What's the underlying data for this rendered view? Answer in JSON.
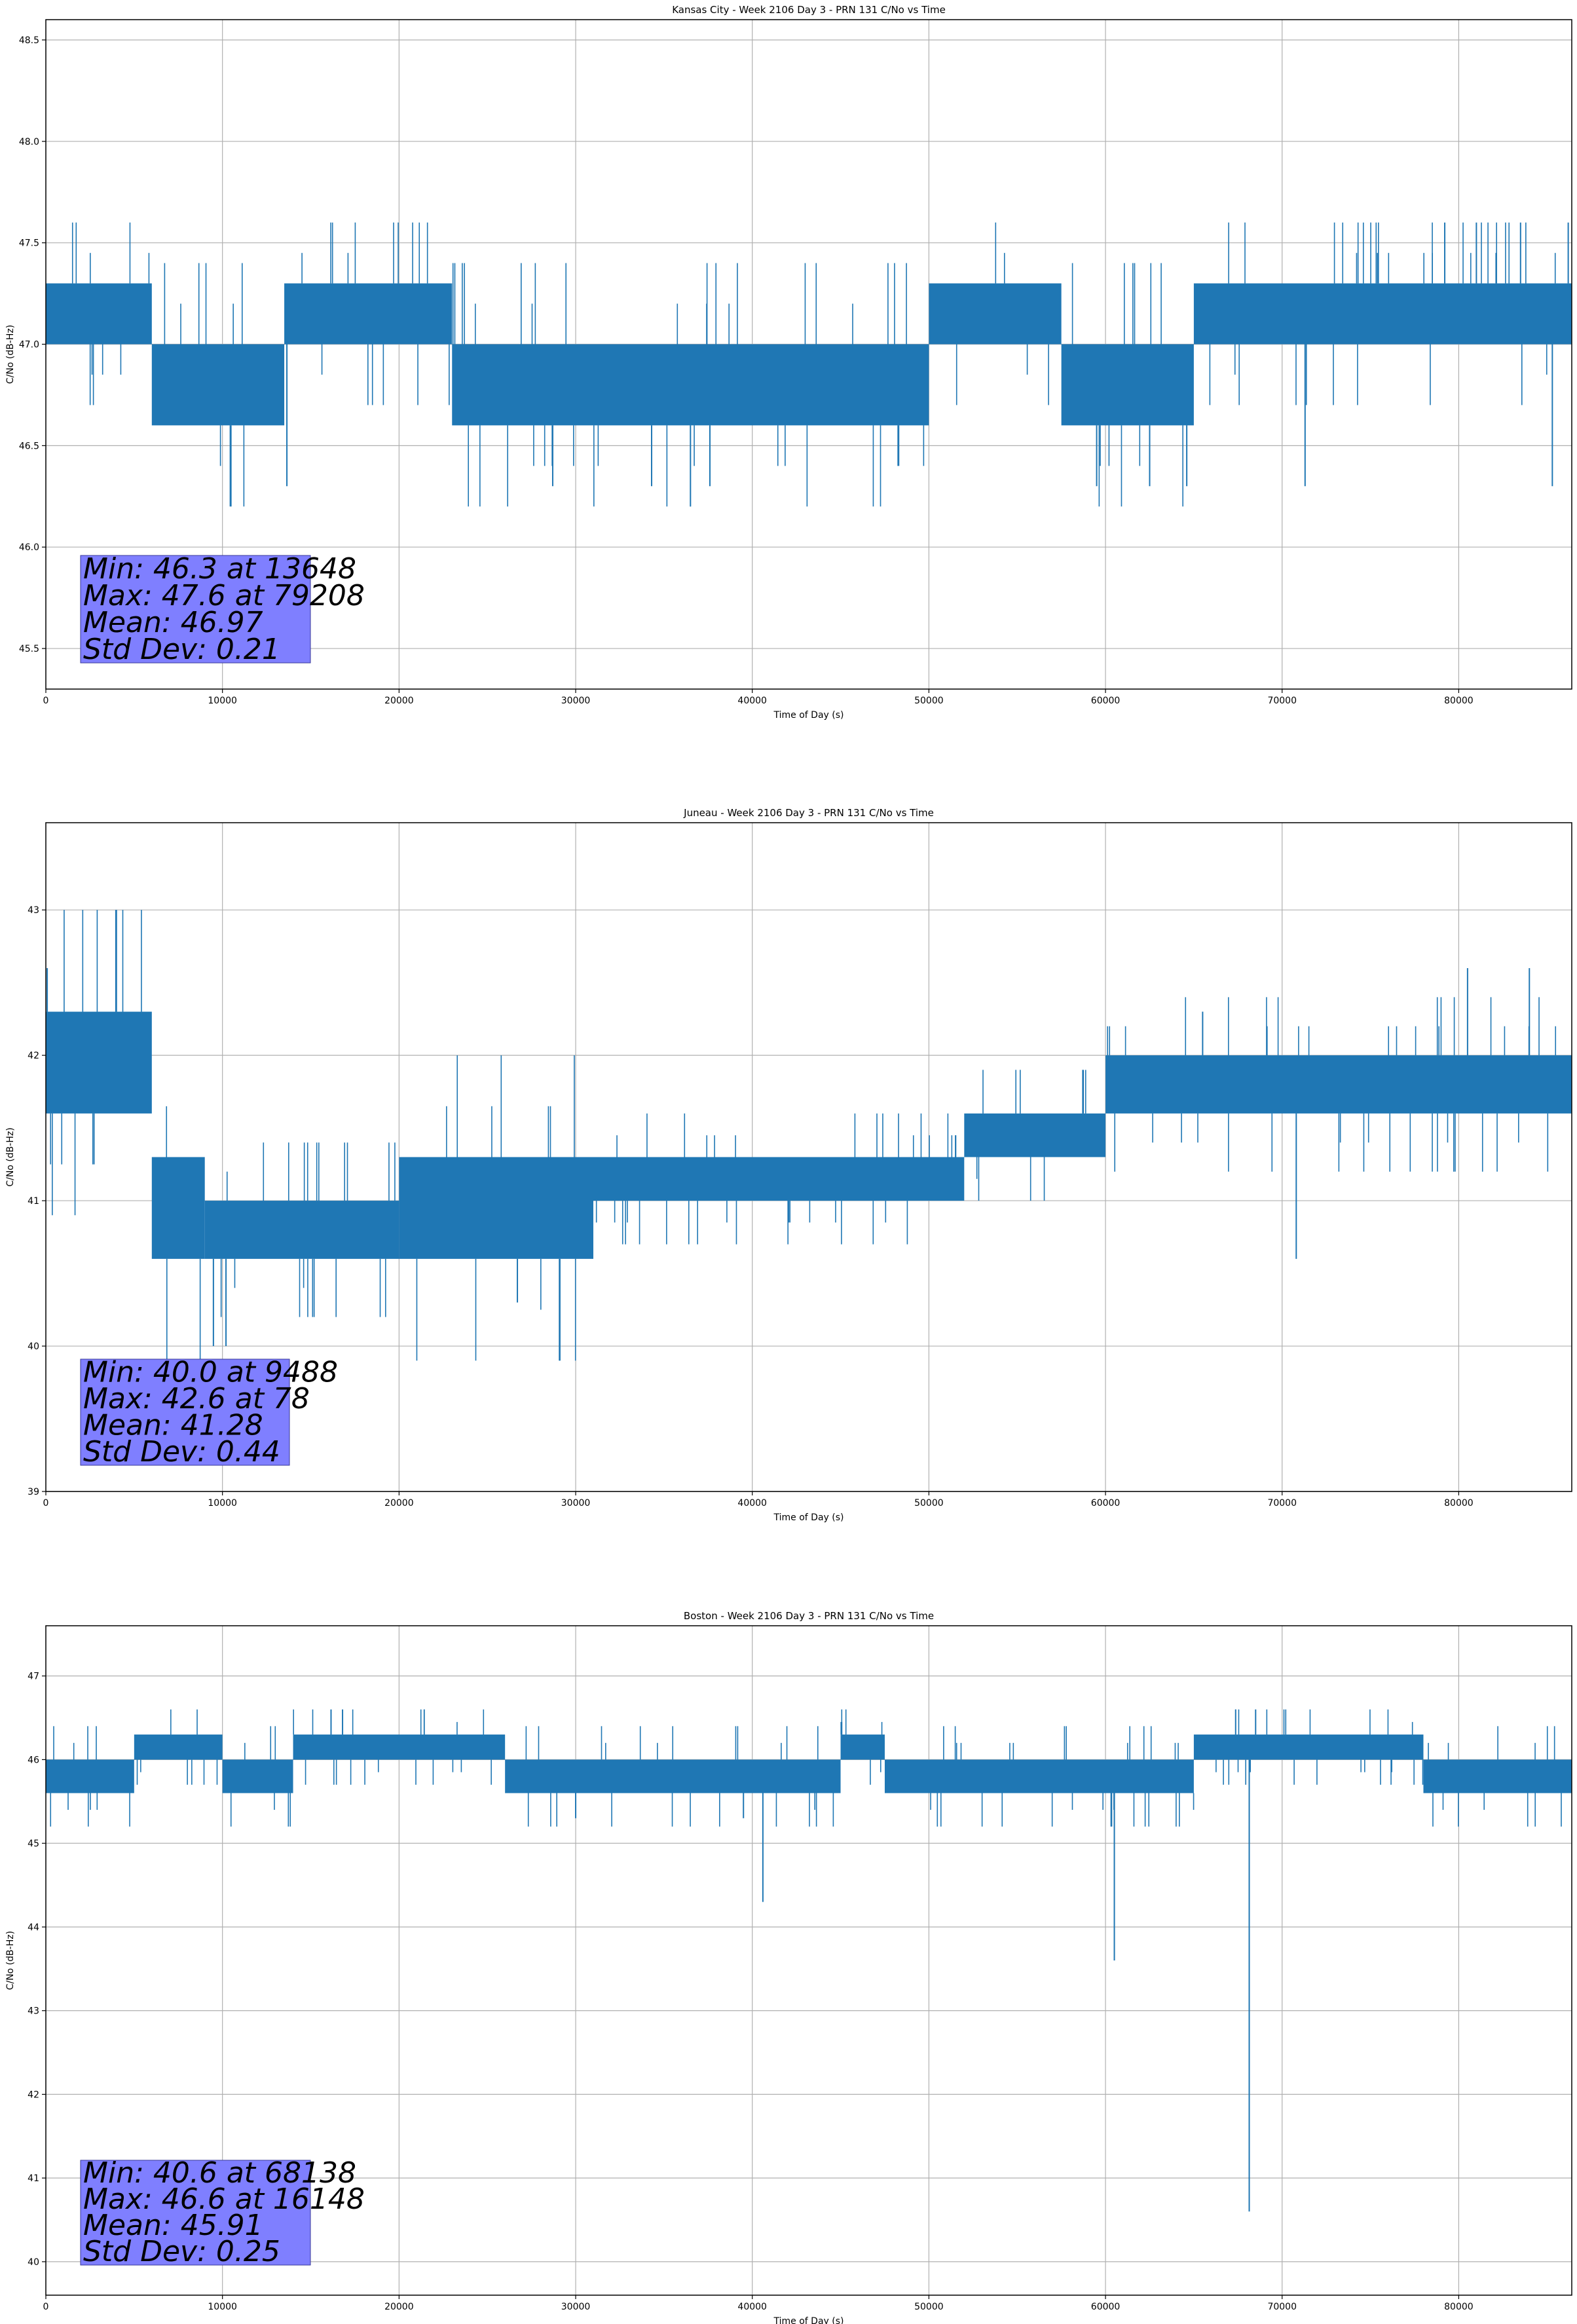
{
  "chart_data": [
    {
      "type": "line",
      "title": "Kansas City - Week 2106 Day 3 - PRN 131 C/No vs Time",
      "xlabel": "Time of Day (s)",
      "ylabel": "C/No (dB-Hz)",
      "xlim": [
        0,
        86400
      ],
      "ylim": [
        45.3,
        48.6
      ],
      "xticks": [
        0,
        10000,
        20000,
        30000,
        40000,
        50000,
        60000,
        70000,
        80000
      ],
      "xtick_labels": [
        "0",
        "10000",
        "20000",
        "30000",
        "40000",
        "50000",
        "60000",
        "70000",
        "80000"
      ],
      "yticks": [
        45.5,
        46.0,
        46.5,
        47.0,
        47.5,
        48.0,
        48.5
      ],
      "ytick_labels": [
        "45.5",
        "46.0",
        "46.5",
        "47.0",
        "47.5",
        "48.0",
        "48.5"
      ],
      "grid": true,
      "color": "#1f77b4",
      "stats": [
        "Min: 46.3 at 13648",
        "Max: 47.6 at 79208",
        "Mean: 46.97",
        "Std Dev: 0.21"
      ],
      "band_segments": [
        {
          "x": [
            0,
            6000
          ],
          "low": 47.0,
          "high": 47.3
        },
        {
          "x": [
            6000,
            13500
          ],
          "low": 46.6,
          "high": 47.0
        },
        {
          "x": [
            13500,
            23000
          ],
          "low": 47.0,
          "high": 47.3
        },
        {
          "x": [
            23000,
            50000
          ],
          "low": 46.6,
          "high": 47.0
        },
        {
          "x": [
            50000,
            57500
          ],
          "low": 47.0,
          "high": 47.3
        },
        {
          "x": [
            57500,
            65000
          ],
          "low": 46.6,
          "high": 47.0
        },
        {
          "x": [
            65000,
            86400
          ],
          "low": 47.0,
          "high": 47.3
        }
      ],
      "spikes": [
        {
          "x": 13648,
          "y": 46.3
        },
        {
          "x": 28700,
          "y": 46.3
        },
        {
          "x": 34300,
          "y": 46.3
        },
        {
          "x": 37600,
          "y": 46.3
        },
        {
          "x": 59500,
          "y": 46.3
        },
        {
          "x": 62500,
          "y": 46.3
        },
        {
          "x": 64600,
          "y": 46.3
        },
        {
          "x": 71300,
          "y": 46.3
        },
        {
          "x": 85300,
          "y": 46.3
        },
        {
          "x": 79208,
          "y": 47.6
        },
        {
          "x": 81000,
          "y": 47.6
        },
        {
          "x": 83500,
          "y": 47.6
        },
        {
          "x": 86200,
          "y": 47.6
        }
      ]
    },
    {
      "type": "line",
      "title": "Juneau - Week 2106 Day 3 - PRN 131 C/No vs Time",
      "xlabel": "Time of Day (s)",
      "ylabel": "C/No (dB-Hz)",
      "xlim": [
        0,
        86400
      ],
      "ylim": [
        39.0,
        43.6
      ],
      "xticks": [
        0,
        10000,
        20000,
        30000,
        40000,
        50000,
        60000,
        70000,
        80000
      ],
      "xtick_labels": [
        "0",
        "10000",
        "20000",
        "30000",
        "40000",
        "50000",
        "60000",
        "70000",
        "80000"
      ],
      "yticks": [
        39,
        40,
        41,
        42,
        43
      ],
      "ytick_labels": [
        "39",
        "40",
        "41",
        "42",
        "43"
      ],
      "grid": true,
      "color": "#1f77b4",
      "stats": [
        "Min: 40.0 at 9488",
        "Max: 42.6 at 78",
        "Mean: 41.28",
        "Std Dev: 0.44"
      ],
      "band_segments": [
        {
          "x": [
            0,
            6000
          ],
          "low": 41.6,
          "high": 42.3
        },
        {
          "x": [
            6000,
            9000
          ],
          "low": 40.6,
          "high": 41.3
        },
        {
          "x": [
            9000,
            20000
          ],
          "low": 40.6,
          "high": 41.0
        },
        {
          "x": [
            20000,
            31000
          ],
          "low": 40.6,
          "high": 41.3
        },
        {
          "x": [
            31000,
            52000
          ],
          "low": 41.0,
          "high": 41.3
        },
        {
          "x": [
            52000,
            60000
          ],
          "low": 41.3,
          "high": 41.6
        },
        {
          "x": [
            60000,
            77000
          ],
          "low": 41.6,
          "high": 42.0
        },
        {
          "x": [
            77000,
            86400
          ],
          "low": 41.6,
          "high": 42.0
        }
      ],
      "spikes": [
        {
          "x": 78,
          "y": 42.6
        },
        {
          "x": 9488,
          "y": 40.0
        },
        {
          "x": 10200,
          "y": 40.0
        },
        {
          "x": 26700,
          "y": 40.3
        },
        {
          "x": 70800,
          "y": 40.6
        },
        {
          "x": 80500,
          "y": 42.6
        },
        {
          "x": 84000,
          "y": 42.6
        },
        {
          "x": 65500,
          "y": 42.3
        }
      ]
    },
    {
      "type": "line",
      "title": "Boston - Week 2106 Day 3 - PRN 131 C/No vs Time",
      "xlabel": "Time of Day (s)",
      "ylabel": "C/No (dB-Hz)",
      "xlim": [
        0,
        86400
      ],
      "ylim": [
        39.6,
        47.6
      ],
      "xticks": [
        0,
        10000,
        20000,
        30000,
        40000,
        50000,
        60000,
        70000,
        80000
      ],
      "xtick_labels": [
        "0",
        "10000",
        "20000",
        "30000",
        "40000",
        "50000",
        "60000",
        "70000",
        "80000"
      ],
      "yticks": [
        40,
        41,
        42,
        43,
        44,
        45,
        46,
        47
      ],
      "ytick_labels": [
        "40",
        "41",
        "42",
        "43",
        "44",
        "45",
        "46",
        "47"
      ],
      "grid": true,
      "color": "#1f77b4",
      "stats": [
        "Min: 40.6 at 68138",
        "Max: 46.6 at 16148",
        "Mean: 45.91",
        "Std Dev: 0.25"
      ],
      "band_segments": [
        {
          "x": [
            0,
            5000
          ],
          "low": 45.6,
          "high": 46.0
        },
        {
          "x": [
            5000,
            10000
          ],
          "low": 46.0,
          "high": 46.3
        },
        {
          "x": [
            10000,
            14000
          ],
          "low": 45.6,
          "high": 46.0
        },
        {
          "x": [
            14000,
            26000
          ],
          "low": 46.0,
          "high": 46.3
        },
        {
          "x": [
            26000,
            45000
          ],
          "low": 45.6,
          "high": 46.0
        },
        {
          "x": [
            45000,
            47500
          ],
          "low": 46.0,
          "high": 46.3
        },
        {
          "x": [
            47500,
            65000
          ],
          "low": 45.6,
          "high": 46.0
        },
        {
          "x": [
            65000,
            78000
          ],
          "low": 46.0,
          "high": 46.3
        },
        {
          "x": [
            78000,
            86400
          ],
          "low": 45.6,
          "high": 46.0
        }
      ],
      "spikes": [
        {
          "x": 16148,
          "y": 46.6
        },
        {
          "x": 16800,
          "y": 46.6
        },
        {
          "x": 40600,
          "y": 44.3
        },
        {
          "x": 60500,
          "y": 43.6
        },
        {
          "x": 68138,
          "y": 40.6
        },
        {
          "x": 68500,
          "y": 46.6
        },
        {
          "x": 30000,
          "y": 45.3
        },
        {
          "x": 39500,
          "y": 45.3
        }
      ]
    }
  ]
}
